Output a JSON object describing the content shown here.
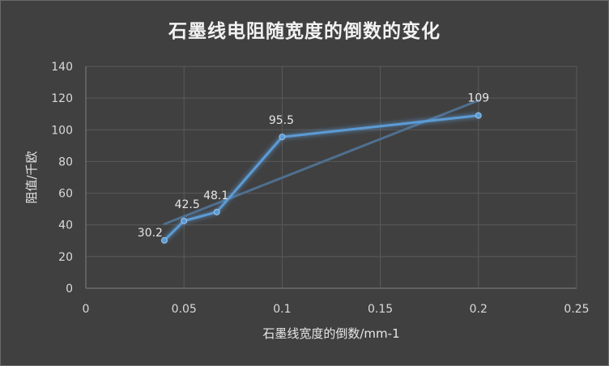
{
  "chart_data": {
    "type": "scatter",
    "title": "石墨线电阻随宽度的倒数的变化",
    "xlabel": "石墨线宽度的倒数/mm-1",
    "ylabel": "阻值/千欧",
    "xlim": [
      0,
      0.25
    ],
    "ylim": [
      0,
      140
    ],
    "x_ticks": [
      "0",
      "0.05",
      "0.1",
      "0.15",
      "0.2",
      "0.25"
    ],
    "y_ticks": [
      "0",
      "20",
      "40",
      "60",
      "80",
      "100",
      "120",
      "140"
    ],
    "x_tick_values": [
      0,
      0.05,
      0.1,
      0.15,
      0.2,
      0.25
    ],
    "y_tick_values": [
      0,
      20,
      40,
      60,
      80,
      100,
      120,
      140
    ],
    "grid": "vertical and horizontal",
    "legend": "none",
    "series": [
      {
        "color": "#5b9bd5",
        "x": [
          0.04,
          0.05,
          0.0667,
          0.1,
          0.2
        ],
        "y": [
          30.2,
          42.5,
          48.1,
          95.5,
          109
        ],
        "labels": [
          "30.2",
          "42.5",
          "48.1",
          "95.5",
          "109"
        ]
      }
    ],
    "trendline": {
      "type": "linear",
      "color": "#4f6f8f",
      "x": [
        0.04,
        0.2
      ],
      "y": [
        40.5,
        118.5
      ]
    }
  }
}
